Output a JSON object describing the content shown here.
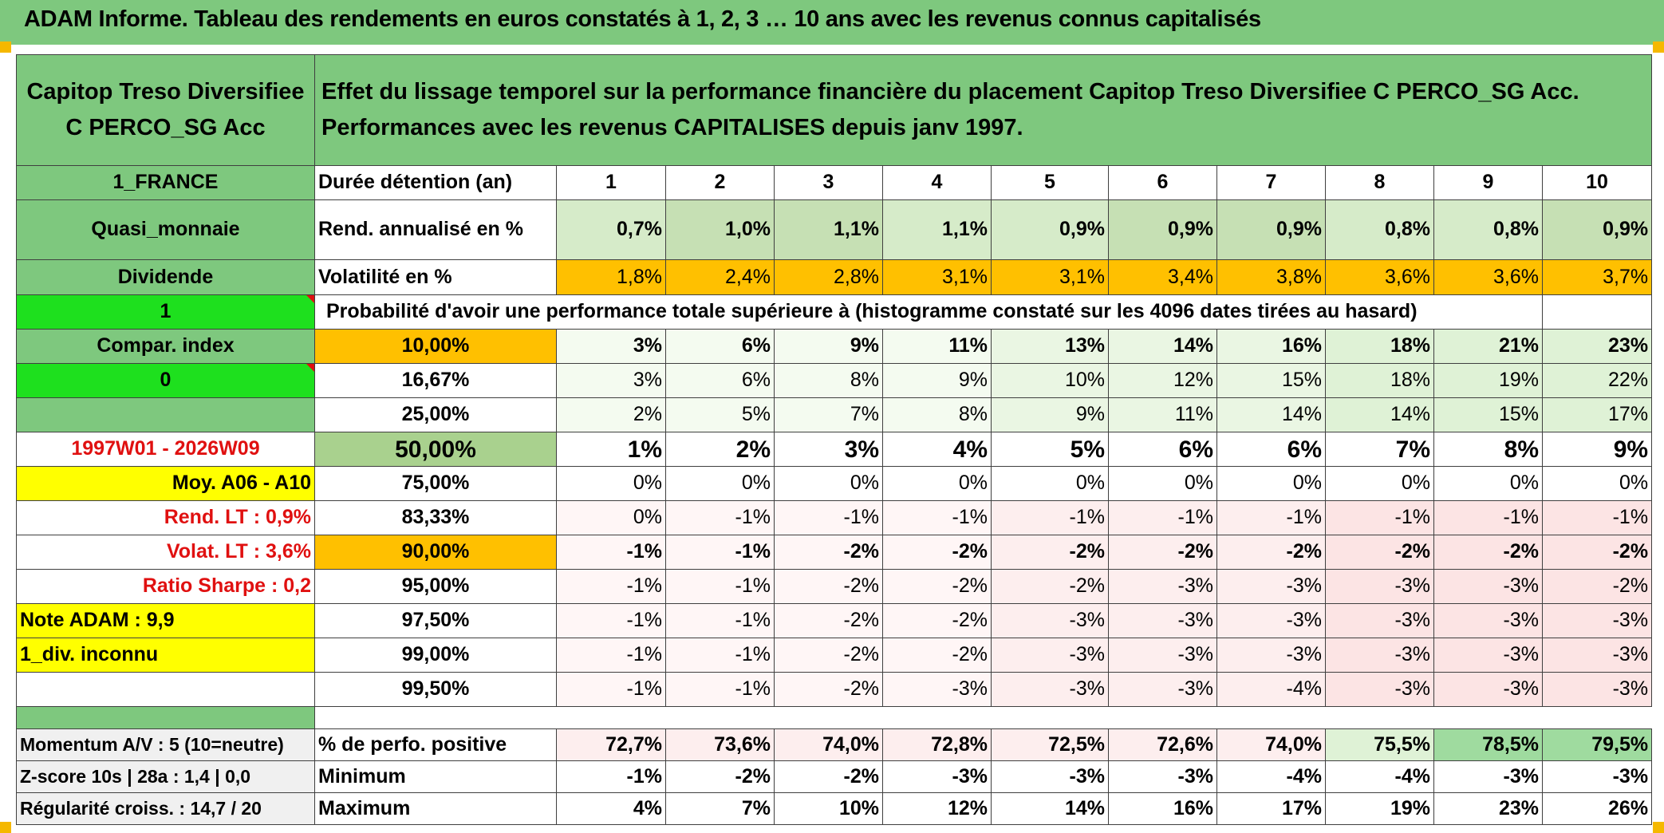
{
  "title": "ADAM Informe. Tableau des rendements en euros constatés à 1, 2, 3 … 10 ans avec les revenus connus capitalisés",
  "fund_name": "Capitop Treso Diversifiee C PERCO_SG Acc",
  "header_text": "Effet du lissage temporel sur la performance financière du placement Capitop Treso Diversifiee C PERCO_SG Acc. Performances avec les revenus CAPITALISES depuis janv 1997.",
  "left": {
    "country": "1_FRANCE",
    "category": "Quasi_monnaie",
    "dividend": "Dividende",
    "flag1": "1",
    "compar_index": "Compar. index",
    "flag0": "0",
    "period": "1997W01 - 2026W09",
    "moy": "Moy. A06 - A10",
    "rend_lt": "Rend. LT :   0,9%",
    "volat_lt": "Volat. LT :   3,6%",
    "sharpe": "Ratio Sharpe :    0,2",
    "note": "Note ADAM : 9,9",
    "div": "1_div. inconnu",
    "momentum": "Momentum A/V : 5 (10=neutre)",
    "zscore": "Z-score 10s | 28a : 1,4 | 0,0",
    "regularite": "Régularité croiss. : 14,7 / 20"
  },
  "labels": {
    "duree": "Durée détention (an)",
    "rend": "Rend. annualisé en %",
    "volat": "Volatilité en %",
    "prob": "Probabilité d'avoir une performance totale supérieure à (histogramme constaté sur les 4096 dates tirées au hasard)",
    "positive": "% de perfo. positive",
    "minimum": "Minimum",
    "maximum": "Maximum"
  },
  "years": [
    "1",
    "2",
    "3",
    "4",
    "5",
    "6",
    "7",
    "8",
    "9",
    "10"
  ],
  "rend": [
    "0,7%",
    "1,0%",
    "1,1%",
    "1,1%",
    "0,9%",
    "0,9%",
    "0,9%",
    "0,8%",
    "0,8%",
    "0,9%"
  ],
  "volat": [
    "1,8%",
    "2,4%",
    "2,8%",
    "3,1%",
    "3,1%",
    "3,4%",
    "3,8%",
    "3,6%",
    "3,6%",
    "3,7%"
  ],
  "prob_rows": [
    {
      "p": "10,00%",
      "v": [
        "3%",
        "6%",
        "9%",
        "11%",
        "13%",
        "14%",
        "16%",
        "18%",
        "21%",
        "23%"
      ]
    },
    {
      "p": "16,67%",
      "v": [
        "3%",
        "6%",
        "8%",
        "9%",
        "10%",
        "12%",
        "15%",
        "18%",
        "19%",
        "22%"
      ]
    },
    {
      "p": "25,00%",
      "v": [
        "2%",
        "5%",
        "7%",
        "8%",
        "9%",
        "11%",
        "14%",
        "14%",
        "15%",
        "17%"
      ]
    },
    {
      "p": "50,00%",
      "v": [
        "1%",
        "2%",
        "3%",
        "4%",
        "5%",
        "6%",
        "6%",
        "7%",
        "8%",
        "9%"
      ]
    },
    {
      "p": "75,00%",
      "v": [
        "0%",
        "0%",
        "0%",
        "0%",
        "0%",
        "0%",
        "0%",
        "0%",
        "0%",
        "0%"
      ]
    },
    {
      "p": "83,33%",
      "v": [
        "0%",
        "-1%",
        "-1%",
        "-1%",
        "-1%",
        "-1%",
        "-1%",
        "-1%",
        "-1%",
        "-1%"
      ]
    },
    {
      "p": "90,00%",
      "v": [
        "-1%",
        "-1%",
        "-2%",
        "-2%",
        "-2%",
        "-2%",
        "-2%",
        "-2%",
        "-2%",
        "-2%"
      ]
    },
    {
      "p": "95,00%",
      "v": [
        "-1%",
        "-1%",
        "-2%",
        "-2%",
        "-2%",
        "-3%",
        "-3%",
        "-3%",
        "-3%",
        "-2%"
      ]
    },
    {
      "p": "97,50%",
      "v": [
        "-1%",
        "-1%",
        "-2%",
        "-2%",
        "-3%",
        "-3%",
        "-3%",
        "-3%",
        "-3%",
        "-3%"
      ]
    },
    {
      "p": "99,00%",
      "v": [
        "-1%",
        "-1%",
        "-2%",
        "-2%",
        "-3%",
        "-3%",
        "-3%",
        "-3%",
        "-3%",
        "-3%"
      ]
    },
    {
      "p": "99,50%",
      "v": [
        "-1%",
        "-1%",
        "-2%",
        "-3%",
        "-3%",
        "-3%",
        "-4%",
        "-3%",
        "-3%",
        "-3%"
      ]
    }
  ],
  "positive": [
    "72,7%",
    "73,6%",
    "74,0%",
    "72,8%",
    "72,5%",
    "72,6%",
    "74,0%",
    "75,5%",
    "78,5%",
    "79,5%"
  ],
  "minimum": [
    "-1%",
    "-2%",
    "-2%",
    "-3%",
    "-3%",
    "-3%",
    "-4%",
    "-4%",
    "-3%",
    "-3%"
  ],
  "maximum": [
    "4%",
    "7%",
    "10%",
    "12%",
    "14%",
    "16%",
    "17%",
    "19%",
    "23%",
    "26%"
  ]
}
